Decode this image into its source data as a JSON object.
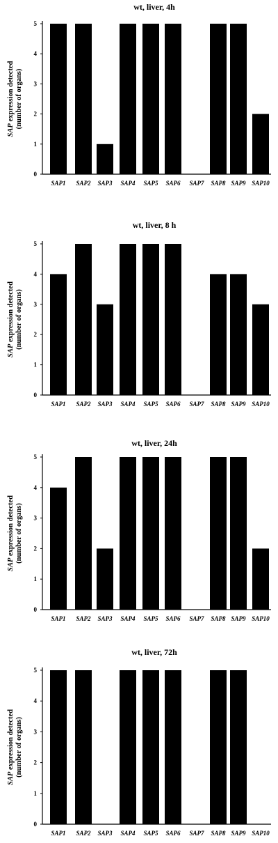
{
  "chart_data": [
    {
      "type": "bar",
      "title": "wt, liver, 4h",
      "ylabel_italic": "SAP",
      "ylabel_rest": " expression detected",
      "ylabel_line2": "(number of  organs)",
      "xlabel": "",
      "categories": [
        "SAP1",
        "SAP2",
        "SAP3",
        "SAP4",
        "SAP5",
        "SAP6",
        "SAP7",
        "SAP8",
        "SAP9",
        "SAP10"
      ],
      "values": [
        5,
        5,
        1,
        5,
        5,
        5,
        0,
        5,
        5,
        2
      ],
      "ylim": [
        0,
        5
      ],
      "yticks": [
        0,
        1,
        2,
        3,
        4,
        5
      ]
    },
    {
      "type": "bar",
      "title": "wt, liver, 8 h",
      "ylabel_italic": "SAP",
      "ylabel_rest": " expression detected",
      "ylabel_line2": "(number of  organs)",
      "xlabel": "",
      "categories": [
        "SAP1",
        "SAP2",
        "SAP3",
        "SAP4",
        "SAP5",
        "SAP6",
        "SAP7",
        "SAP8",
        "SAP9",
        "SAP10"
      ],
      "values": [
        4,
        5,
        3,
        5,
        5,
        5,
        0,
        4,
        4,
        3
      ],
      "ylim": [
        0,
        5
      ],
      "yticks": [
        0,
        1,
        2,
        3,
        4,
        5
      ]
    },
    {
      "type": "bar",
      "title": "wt, liver, 24h",
      "ylabel_italic": "SAP",
      "ylabel_rest": " expression detected",
      "ylabel_line2": "(number of  organs)",
      "xlabel": "",
      "categories": [
        "SAP1",
        "SAP2",
        "SAP3",
        "SAP4",
        "SAP5",
        "SAP6",
        "SAP7",
        "SAP8",
        "SAP9",
        "SAP10"
      ],
      "values": [
        4,
        5,
        2,
        5,
        5,
        5,
        0,
        5,
        5,
        2
      ],
      "ylim": [
        0,
        5
      ],
      "yticks": [
        0,
        1,
        2,
        3,
        4,
        5
      ]
    },
    {
      "type": "bar",
      "title": "wt, liver, 72h",
      "ylabel_italic": "SAP",
      "ylabel_rest": " expression detected",
      "ylabel_line2": "(number of  organs)",
      "xlabel": "",
      "categories": [
        "SAP1",
        "SAP2",
        "SAP3",
        "SAP4",
        "SAP5",
        "SAP6",
        "SAP7",
        "SAP8",
        "SAP9",
        "SAP10"
      ],
      "values": [
        5,
        5,
        0,
        5,
        5,
        5,
        0,
        5,
        5,
        0
      ],
      "ylim": [
        0,
        5
      ],
      "yticks": [
        0,
        1,
        2,
        3,
        4,
        5
      ]
    }
  ]
}
